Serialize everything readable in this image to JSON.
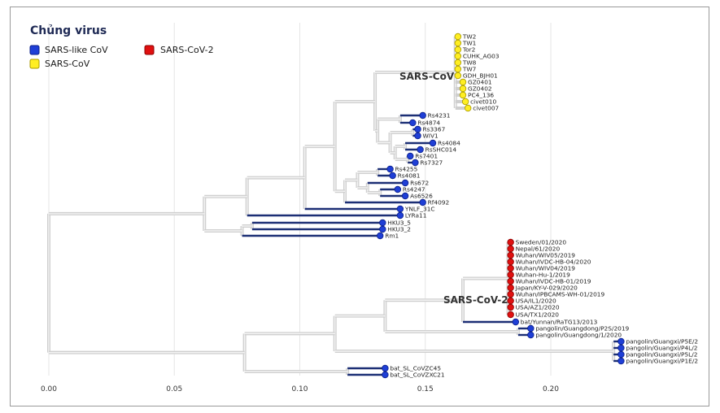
{
  "legend": {
    "title": "Chủng virus",
    "items": [
      {
        "label": "SARS-like CoV",
        "color": "#1f3fd6"
      },
      {
        "label": "SARS-CoV-2",
        "color": "#e01010"
      },
      {
        "label": "SARS-CoV",
        "color": "#ffee22"
      }
    ]
  },
  "clade_labels": {
    "sars_cov": "SARS-CoV",
    "sars_cov2": "SARS-CoV-2"
  },
  "colors": {
    "sars_like": "#1f3fd6",
    "sars_cov2": "#e01010",
    "sars_cov": "#ffee22",
    "branch": "#cfcfcf",
    "tip_line": "#1c2f75"
  },
  "chart_data": {
    "type": "phylogenetic-tree",
    "xlim": [
      0,
      0.22
    ],
    "x_ticks": [
      {
        "value": 0.0,
        "label": "0.00"
      },
      {
        "value": 0.05,
        "label": "0.05"
      },
      {
        "value": 0.1,
        "label": "0.10"
      },
      {
        "value": 0.15,
        "label": "0.15"
      },
      {
        "value": 0.2,
        "label": "0.20"
      }
    ],
    "grid": true,
    "leaves": [
      {
        "id": "l1",
        "label": "TW2",
        "group": "SARS-CoV",
        "x": 0.163
      },
      {
        "id": "l2",
        "label": "TW1",
        "group": "SARS-CoV",
        "x": 0.163
      },
      {
        "id": "l3",
        "label": "Tor2",
        "group": "SARS-CoV",
        "x": 0.163
      },
      {
        "id": "l4",
        "label": "CUHK_AG03",
        "group": "SARS-CoV",
        "x": 0.163
      },
      {
        "id": "l5",
        "label": "TW8",
        "group": "SARS-CoV",
        "x": 0.163
      },
      {
        "id": "l6",
        "label": "TW7",
        "group": "SARS-CoV",
        "x": 0.163
      },
      {
        "id": "l7",
        "label": "GDH_BJH01",
        "group": "SARS-CoV",
        "x": 0.163
      },
      {
        "id": "l8",
        "label": "GZ0401",
        "group": "SARS-CoV",
        "x": 0.165
      },
      {
        "id": "l9",
        "label": "GZ0402",
        "group": "SARS-CoV",
        "x": 0.165
      },
      {
        "id": "l10",
        "label": "PC4_136",
        "group": "SARS-CoV",
        "x": 0.165
      },
      {
        "id": "l11",
        "label": "civet010",
        "group": "SARS-CoV",
        "x": 0.166
      },
      {
        "id": "l12",
        "label": "civet007",
        "group": "SARS-CoV",
        "x": 0.167
      },
      {
        "id": "l13",
        "label": "Rs4231",
        "group": "SARS-like CoV",
        "x": 0.149
      },
      {
        "id": "l14",
        "label": "Rs4874",
        "group": "SARS-like CoV",
        "x": 0.145
      },
      {
        "id": "l15",
        "label": "Rs3367",
        "group": "SARS-like CoV",
        "x": 0.147
      },
      {
        "id": "l16",
        "label": "WIV1",
        "group": "SARS-like CoV",
        "x": 0.147
      },
      {
        "id": "l17",
        "label": "Rs4084",
        "group": "SARS-like CoV",
        "x": 0.153
      },
      {
        "id": "l18",
        "label": "RsSHC014",
        "group": "SARS-like CoV",
        "x": 0.148
      },
      {
        "id": "l19",
        "label": "Rs7401",
        "group": "SARS-like CoV",
        "x": 0.144
      },
      {
        "id": "l20",
        "label": "Rs7327",
        "group": "SARS-like CoV",
        "x": 0.146
      },
      {
        "id": "l21",
        "label": "Rs4255",
        "group": "SARS-like CoV",
        "x": 0.136
      },
      {
        "id": "l22",
        "label": "Rs4081",
        "group": "SARS-like CoV",
        "x": 0.137
      },
      {
        "id": "l23",
        "label": "Rs672",
        "group": "SARS-like CoV",
        "x": 0.142
      },
      {
        "id": "l24",
        "label": "Rs4247",
        "group": "SARS-like CoV",
        "x": 0.139
      },
      {
        "id": "l25",
        "label": "As6526",
        "group": "SARS-like CoV",
        "x": 0.142
      },
      {
        "id": "l26",
        "label": "Rf4092",
        "group": "SARS-like CoV",
        "x": 0.149
      },
      {
        "id": "l27",
        "label": "YNLF_31C",
        "group": "SARS-like CoV",
        "x": 0.14
      },
      {
        "id": "l28",
        "label": "LYRa11",
        "group": "SARS-like CoV",
        "x": 0.14
      },
      {
        "id": "l29",
        "label": "HKU3_5",
        "group": "SARS-like CoV",
        "x": 0.133
      },
      {
        "id": "l30",
        "label": "HKU3_2",
        "group": "SARS-like CoV",
        "x": 0.133
      },
      {
        "id": "l31",
        "label": "Rm1",
        "group": "SARS-like CoV",
        "x": 0.132
      },
      {
        "id": "l32",
        "label": "Sweden/01/2020",
        "group": "SARS-CoV-2",
        "x": 0.184
      },
      {
        "id": "l33",
        "label": "Nepal/61/2020",
        "group": "SARS-CoV-2",
        "x": 0.184
      },
      {
        "id": "l34",
        "label": "Wuhan/WIV05/2019",
        "group": "SARS-CoV-2",
        "x": 0.184
      },
      {
        "id": "l35",
        "label": "Wuhan/IVDC-HB-04/2020",
        "group": "SARS-CoV-2",
        "x": 0.184
      },
      {
        "id": "l36",
        "label": "Wuhan/WIV04/2019",
        "group": "SARS-CoV-2",
        "x": 0.184
      },
      {
        "id": "l37",
        "label": "Wuhan-Hu-1/2019",
        "group": "SARS-CoV-2",
        "x": 0.184
      },
      {
        "id": "l38",
        "label": "Wuhan/IVDC-HB-01/2019",
        "group": "SARS-CoV-2",
        "x": 0.184
      },
      {
        "id": "l39",
        "label": "Japan/KY-V-029/2020",
        "group": "SARS-CoV-2",
        "x": 0.184
      },
      {
        "id": "l40",
        "label": "Wuhan/IPBCAMS-WH-01/2019",
        "group": "SARS-CoV-2",
        "x": 0.184
      },
      {
        "id": "l41",
        "label": "USA/IL1/2020",
        "group": "SARS-CoV-2",
        "x": 0.184
      },
      {
        "id": "l42",
        "label": "USA/AZ1/2020",
        "group": "SARS-CoV-2",
        "x": 0.184
      },
      {
        "id": "l43",
        "label": "USA/TX1/2020",
        "group": "SARS-CoV-2",
        "x": 0.184
      },
      {
        "id": "l44",
        "label": "bat/Yunnan/RaTG13/2013",
        "group": "SARS-like CoV",
        "x": 0.186
      },
      {
        "id": "l45",
        "label": "pangolin/Guangdong/P2S/2019",
        "group": "SARS-like CoV",
        "x": 0.192
      },
      {
        "id": "l46",
        "label": "pangolin/Guangdong/1/2020",
        "group": "SARS-like CoV",
        "x": 0.192
      },
      {
        "id": "l47",
        "label": "pangolin/Guangxi/P5E/2",
        "group": "SARS-like CoV",
        "x": 0.228
      },
      {
        "id": "l48",
        "label": "pangolin/Guangxi/P4L/2",
        "group": "SARS-like CoV",
        "x": 0.228
      },
      {
        "id": "l49",
        "label": "pangolin/Guangxi/P5L/2",
        "group": "SARS-like CoV",
        "x": 0.228
      },
      {
        "id": "l50",
        "label": "pangolin/Guangxi/P1E/2",
        "group": "SARS-like CoV",
        "x": 0.228
      },
      {
        "id": "l51",
        "label": "bat_SL_CoVZC45",
        "group": "SARS-like CoV",
        "x": 0.134
      },
      {
        "id": "l52",
        "label": "bat_SL_CoVZXC21",
        "group": "SARS-like CoV",
        "x": 0.134
      }
    ],
    "internal_nodes": [
      {
        "id": "n_sarscov",
        "x": 0.162,
        "children": [
          "l1",
          "l2",
          "l3",
          "l4",
          "l5",
          "l6",
          "l7",
          "l8",
          "l9",
          "l10",
          "l11",
          "l12"
        ]
      },
      {
        "id": "n_a1",
        "x": 0.14,
        "children": [
          "l13",
          "l14"
        ]
      },
      {
        "id": "n_a2",
        "x": 0.145,
        "children": [
          "l15",
          "l16"
        ]
      },
      {
        "id": "n_a3",
        "x": 0.142,
        "children": [
          "l17",
          "l18"
        ]
      },
      {
        "id": "n_a4",
        "x": 0.143,
        "children": [
          "l19",
          "l20"
        ]
      },
      {
        "id": "n_a5",
        "x": 0.138,
        "children": [
          "n_a3",
          "n_a4"
        ]
      },
      {
        "id": "n_a6",
        "x": 0.136,
        "children": [
          "n_a2",
          "n_a5"
        ]
      },
      {
        "id": "n_a7",
        "x": 0.131,
        "children": [
          "n_a1",
          "n_a6"
        ]
      },
      {
        "id": "n_a8",
        "x": 0.13,
        "children": [
          "n_sarscov",
          "n_a7"
        ]
      },
      {
        "id": "n_b1",
        "x": 0.131,
        "children": [
          "l21",
          "l22"
        ]
      },
      {
        "id": "n_b2",
        "x": 0.132,
        "children": [
          "l24",
          "l25"
        ]
      },
      {
        "id": "n_b3",
        "x": 0.127,
        "children": [
          "l23",
          "n_b2"
        ]
      },
      {
        "id": "n_b4",
        "x": 0.123,
        "children": [
          "n_b1",
          "n_b3"
        ]
      },
      {
        "id": "n_b5",
        "x": 0.118,
        "children": [
          "n_b4",
          "l26"
        ]
      },
      {
        "id": "n_c1",
        "x": 0.114,
        "children": [
          "n_a8",
          "n_b5"
        ]
      },
      {
        "id": "n_c2",
        "x": 0.102,
        "children": [
          "n_c1",
          "l27"
        ]
      },
      {
        "id": "n_c3",
        "x": 0.079,
        "children": [
          "n_c2",
          "l28"
        ]
      },
      {
        "id": "n_d1",
        "x": 0.081,
        "children": [
          "l29",
          "l30"
        ]
      },
      {
        "id": "n_d2",
        "x": 0.077,
        "children": [
          "n_d1",
          "l31"
        ]
      },
      {
        "id": "n_e1",
        "x": 0.062,
        "children": [
          "n_c3",
          "n_d2"
        ]
      },
      {
        "id": "n_f0",
        "x": 0.183,
        "children": [
          "l32",
          "l33",
          "l34",
          "l35",
          "l36",
          "l37",
          "l38",
          "l39",
          "l40",
          "l41",
          "l42",
          "l43"
        ]
      },
      {
        "id": "n_f1",
        "x": 0.165,
        "children": [
          "n_f0",
          "l44"
        ]
      },
      {
        "id": "n_f2",
        "x": 0.187,
        "children": [
          "l45",
          "l46"
        ]
      },
      {
        "id": "n_f3",
        "x": 0.134,
        "children": [
          "n_f1",
          "n_f2"
        ]
      },
      {
        "id": "n_f4",
        "x": 0.225,
        "children": [
          "l47",
          "l48",
          "l49",
          "l50"
        ]
      },
      {
        "id": "n_f5",
        "x": 0.114,
        "children": [
          "n_f3",
          "n_f4"
        ]
      },
      {
        "id": "n_f6",
        "x": 0.119,
        "children": [
          "l51",
          "l52"
        ]
      },
      {
        "id": "n_f7",
        "x": 0.078,
        "children": [
          "n_f5",
          "n_f6"
        ]
      },
      {
        "id": "root",
        "x": 0.0,
        "children": [
          "n_e1",
          "n_f7"
        ]
      }
    ]
  }
}
